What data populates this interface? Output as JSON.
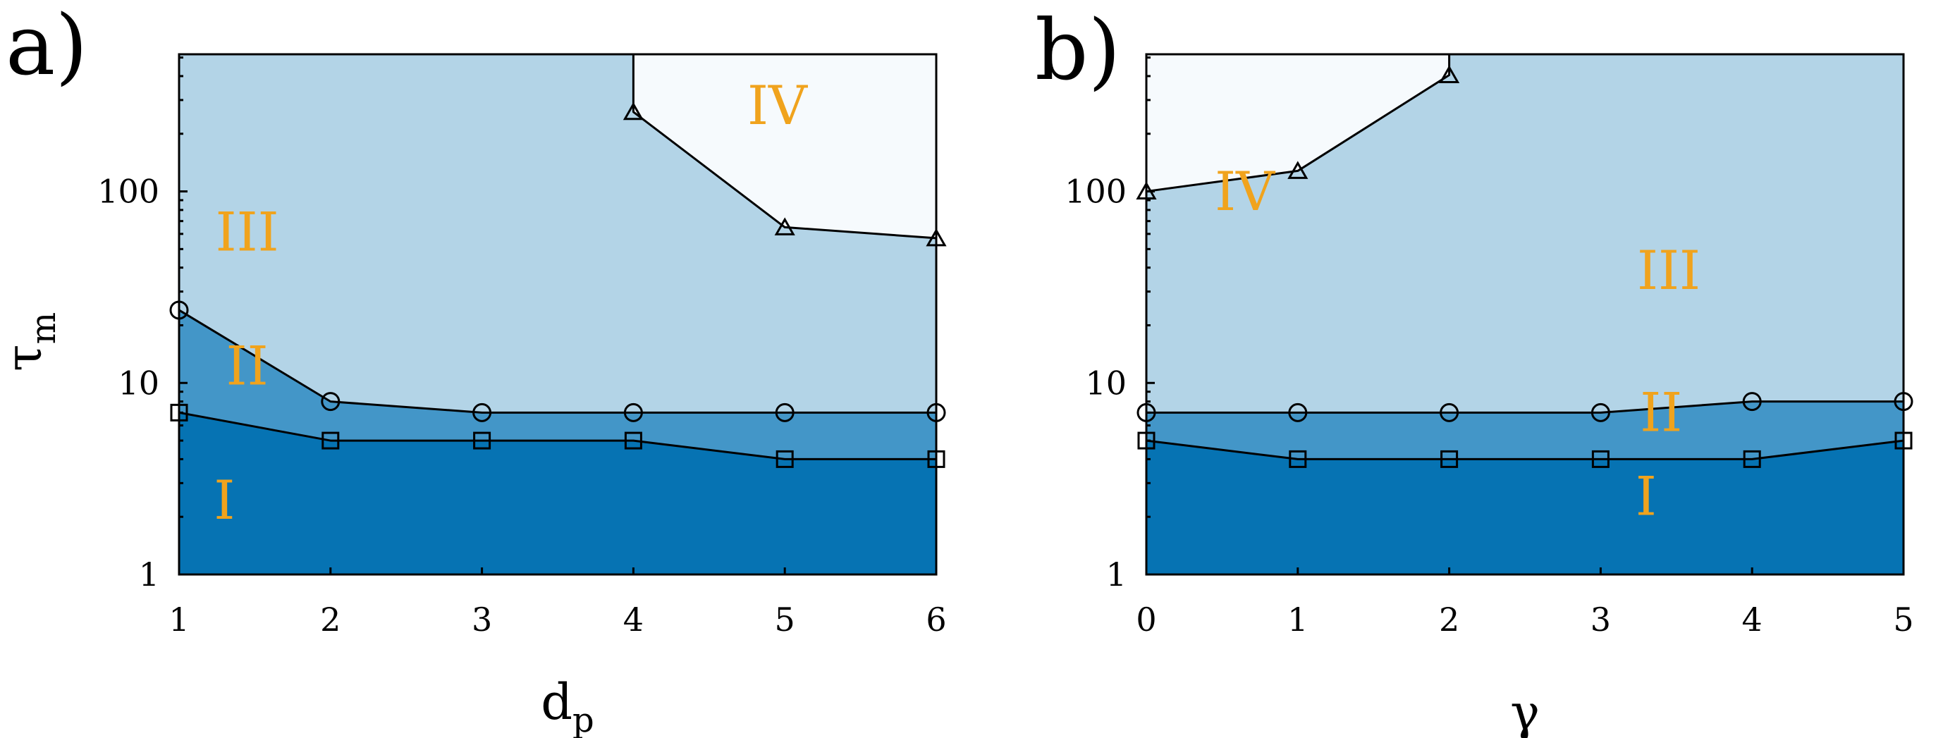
{
  "colors": {
    "region_I": "#0673b3",
    "region_II": "#4396c8",
    "region_III": "#b3d4e7",
    "region_IV": "#f6fafd",
    "region_label": "#f0a31d"
  },
  "chart_data": [
    {
      "type": "area",
      "panel_label": "a)",
      "xlabel": "d",
      "xlabel_sub": "p",
      "ylabel": "τ",
      "ylabel_sub": "m",
      "yscale": "log",
      "xlim": [
        1,
        6
      ],
      "ylim": [
        1,
        520
      ],
      "xticks": [
        1,
        2,
        3,
        4,
        5,
        6
      ],
      "xtick_labels": [
        "1",
        "2",
        "3",
        "4",
        "5",
        "6"
      ],
      "yticks": [
        1,
        10,
        100
      ],
      "ytick_labels": [
        "1",
        "10",
        "100"
      ],
      "boundaries": [
        {
          "marker": "square",
          "x": [
            1,
            2,
            3,
            4,
            5,
            6
          ],
          "y": [
            7,
            5,
            5,
            5,
            4,
            4
          ]
        },
        {
          "marker": "circle",
          "x": [
            1,
            2,
            3,
            4,
            5,
            6
          ],
          "y": [
            24,
            8,
            7,
            7,
            7,
            7
          ]
        },
        {
          "marker": "triangle",
          "x": [
            4,
            5,
            6
          ],
          "y": [
            260,
            65,
            57
          ],
          "close_to_top_at_x": 4
        }
      ],
      "region_labels": [
        {
          "text": "I",
          "x": 1.3,
          "y": 1.95
        },
        {
          "text": "II",
          "x": 1.45,
          "y": 9.8
        },
        {
          "text": "III",
          "x": 1.45,
          "y": 49
        },
        {
          "text": "IV",
          "x": 4.95,
          "y": 225
        }
      ]
    },
    {
      "type": "area",
      "panel_label": "b)",
      "xlabel": "γ",
      "xlabel_sub": "",
      "ylabel": "",
      "ylabel_sub": "",
      "yscale": "log",
      "xlim": [
        0,
        5
      ],
      "ylim": [
        1,
        520
      ],
      "xticks": [
        0,
        1,
        2,
        3,
        4,
        5
      ],
      "xtick_labels": [
        "0",
        "1",
        "2",
        "3",
        "4",
        "5"
      ],
      "yticks": [
        1,
        10,
        100
      ],
      "ytick_labels": [
        "1",
        "10",
        "100"
      ],
      "boundaries": [
        {
          "marker": "square",
          "x": [
            0,
            1,
            2,
            3,
            4,
            5
          ],
          "y": [
            5,
            4,
            4,
            4,
            4,
            5
          ]
        },
        {
          "marker": "circle",
          "x": [
            0,
            1,
            2,
            3,
            4,
            5
          ],
          "y": [
            7,
            7,
            7,
            7,
            8,
            8
          ]
        },
        {
          "marker": "triangle",
          "x": [
            0,
            1,
            2
          ],
          "y": [
            100,
            128,
            405
          ],
          "close_to_top_at_x": 2
        }
      ],
      "region_labels": [
        {
          "text": "I",
          "x": 3.3,
          "y": 2.05
        },
        {
          "text": "II",
          "x": 3.4,
          "y": 5.6
        },
        {
          "text": "III",
          "x": 3.45,
          "y": 31
        },
        {
          "text": "IV",
          "x": 0.65,
          "y": 80
        }
      ]
    }
  ]
}
